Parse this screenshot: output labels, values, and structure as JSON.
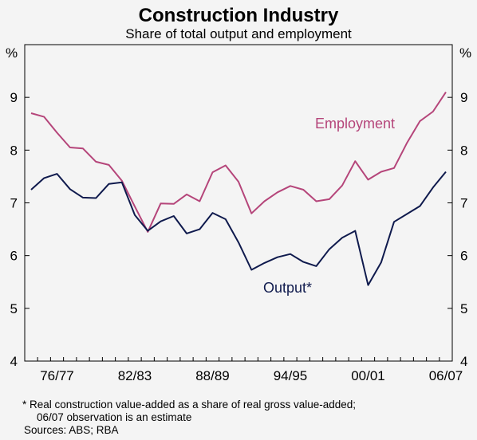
{
  "chart_data": {
    "type": "line",
    "title": "Construction Industry",
    "subtitle": "Share of total output and employment",
    "yunit_left": "%",
    "yunit_right": "%",
    "ylim": [
      4,
      10
    ],
    "yticks": [
      4,
      5,
      6,
      7,
      8,
      9
    ],
    "xlabels": [
      "76/77",
      "82/83",
      "88/89",
      "94/95",
      "00/01",
      "06/07"
    ],
    "x": [
      1974,
      1975,
      1976,
      1977,
      1978,
      1979,
      1980,
      1981,
      1982,
      1983,
      1984,
      1985,
      1986,
      1987,
      1988,
      1989,
      1990,
      1991,
      1992,
      1993,
      1994,
      1995,
      1996,
      1997,
      1998,
      1999,
      2000,
      2001,
      2002,
      2003,
      2004,
      2005,
      2006
    ],
    "grid": false,
    "series": [
      {
        "name": "Employment",
        "color": "#b5457a",
        "values": [
          8.7,
          8.63,
          8.33,
          8.05,
          8.03,
          7.78,
          7.72,
          7.42,
          6.93,
          6.45,
          6.99,
          6.98,
          7.16,
          7.03,
          7.58,
          7.71,
          7.4,
          6.8,
          7.03,
          7.2,
          7.32,
          7.25,
          7.03,
          7.07,
          7.33,
          7.79,
          7.44,
          7.59,
          7.66,
          8.14,
          8.55,
          8.73,
          9.1
        ]
      },
      {
        "name": "Output*",
        "color": "#0f1a4d",
        "values": [
          7.25,
          7.47,
          7.55,
          7.26,
          7.1,
          7.09,
          7.36,
          7.39,
          6.77,
          6.47,
          6.65,
          6.75,
          6.42,
          6.5,
          6.81,
          6.69,
          6.25,
          5.73,
          5.86,
          5.97,
          6.03,
          5.88,
          5.8,
          6.12,
          6.34,
          6.47,
          5.44,
          5.87,
          6.64,
          6.79,
          6.94,
          7.29,
          7.59
        ]
      }
    ]
  },
  "footnotes": {
    "note_line1": "*   Real construction value-added as a share of real gross value-added;",
    "note_line2": "06/07 observation is an estimate",
    "sources": "Sources: ABS; RBA"
  }
}
